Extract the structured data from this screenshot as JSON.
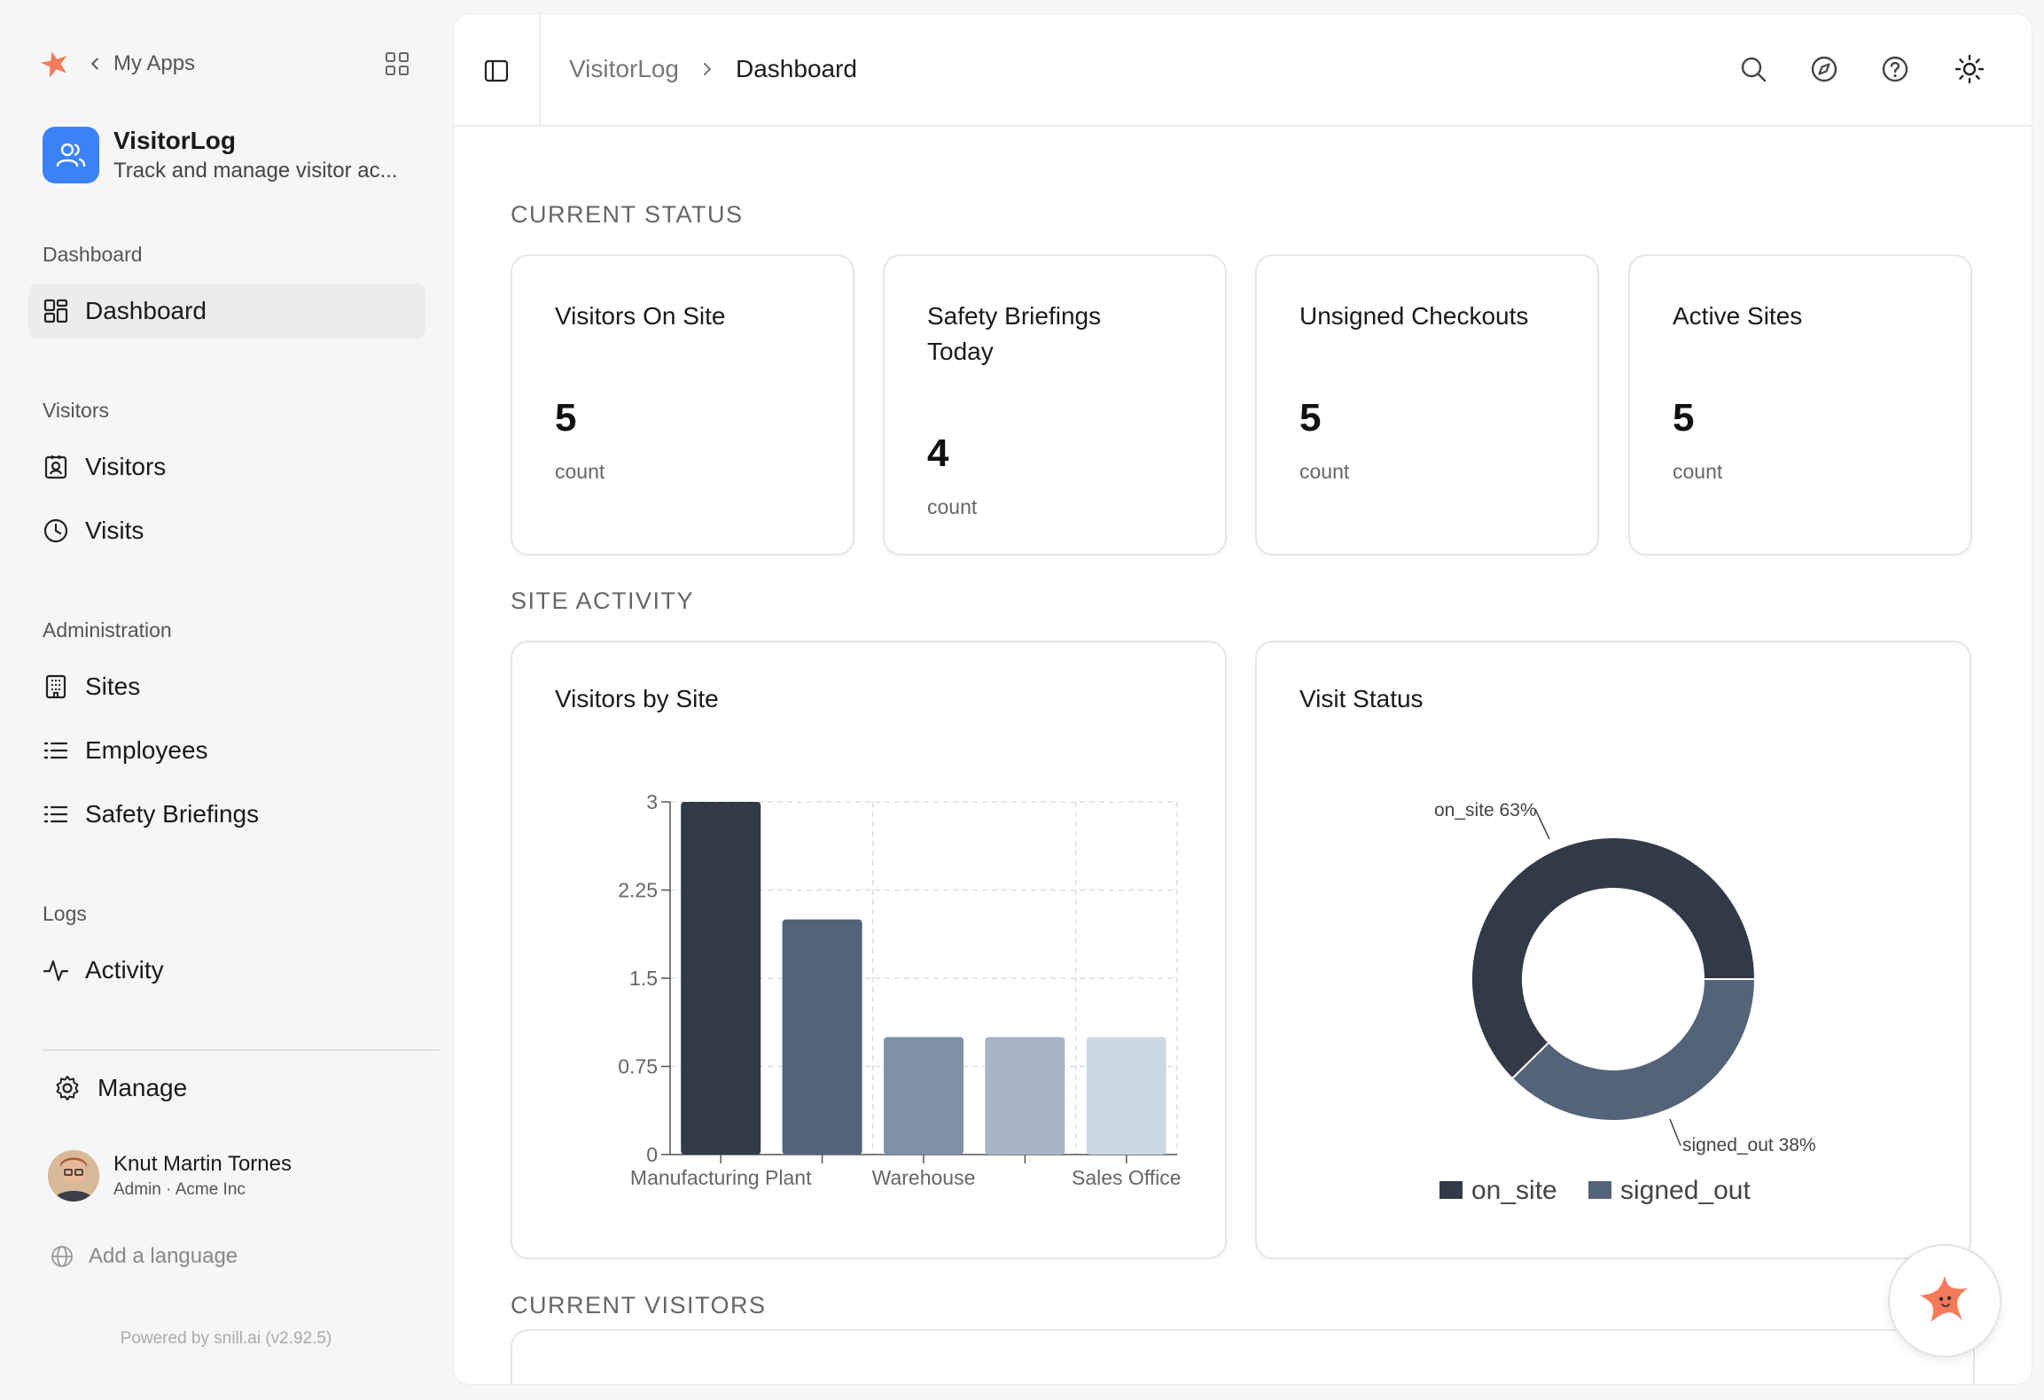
{
  "sidebar": {
    "my_apps": "My Apps",
    "app": {
      "name": "VisitorLog",
      "description": "Track and manage visitor ac..."
    },
    "sections": [
      {
        "label": "Dashboard",
        "items": [
          {
            "label": "Dashboard",
            "icon": "dashboard-icon",
            "active": true
          }
        ]
      },
      {
        "label": "Visitors",
        "items": [
          {
            "label": "Visitors",
            "icon": "badge-icon"
          },
          {
            "label": "Visits",
            "icon": "clock-icon"
          }
        ]
      },
      {
        "label": "Administration",
        "items": [
          {
            "label": "Sites",
            "icon": "building-icon"
          },
          {
            "label": "Employees",
            "icon": "list-icon"
          },
          {
            "label": "Safety Briefings",
            "icon": "list-icon"
          }
        ]
      },
      {
        "label": "Logs",
        "items": [
          {
            "label": "Activity",
            "icon": "activity-icon"
          }
        ]
      }
    ],
    "manage": "Manage",
    "user": {
      "name": "Knut Martin Tornes",
      "role": "Admin · Acme Inc"
    },
    "add_language": "Add a language",
    "powered_by": "Powered by snill.ai (v2.92.5)"
  },
  "header": {
    "breadcrumb": [
      "VisitorLog",
      "Dashboard"
    ],
    "icons": [
      "search-icon",
      "compass-icon",
      "help-icon",
      "sun-icon"
    ]
  },
  "sections": {
    "current_status": "CURRENT STATUS",
    "site_activity": "SITE ACTIVITY",
    "current_visitors": "CURRENT VISITORS"
  },
  "stats": [
    {
      "title": "Visitors On Site",
      "value": "5",
      "unit": "count"
    },
    {
      "title": "Safety Briefings Today",
      "value": "4",
      "unit": "count"
    },
    {
      "title": "Unsigned Checkouts",
      "value": "5",
      "unit": "count"
    },
    {
      "title": "Active Sites",
      "value": "5",
      "unit": "count"
    }
  ],
  "chart_data": [
    {
      "type": "bar",
      "title": "Visitors by Site",
      "categories": [
        "Manufacturing Plant",
        "",
        "Warehouse",
        "",
        "Sales Office"
      ],
      "values": [
        3,
        2,
        1,
        1,
        1
      ],
      "colors": [
        "#323a48",
        "#536379",
        "#7f91a6",
        "#a6b6c7",
        "#cbd8e2"
      ],
      "yticks": [
        "0",
        "0.75",
        "1.5",
        "2.25",
        "3"
      ],
      "ylim": [
        0,
        3
      ],
      "grid": true
    },
    {
      "type": "pie",
      "title": "Visit Status",
      "labels": [
        "on_site",
        "signed_out"
      ],
      "values": [
        63,
        38
      ],
      "slice_labels": [
        "on_site 63%",
        "signed_out 38%"
      ],
      "colors": [
        "#323a48",
        "#536379"
      ],
      "donut": true,
      "legend": "bottom"
    }
  ]
}
